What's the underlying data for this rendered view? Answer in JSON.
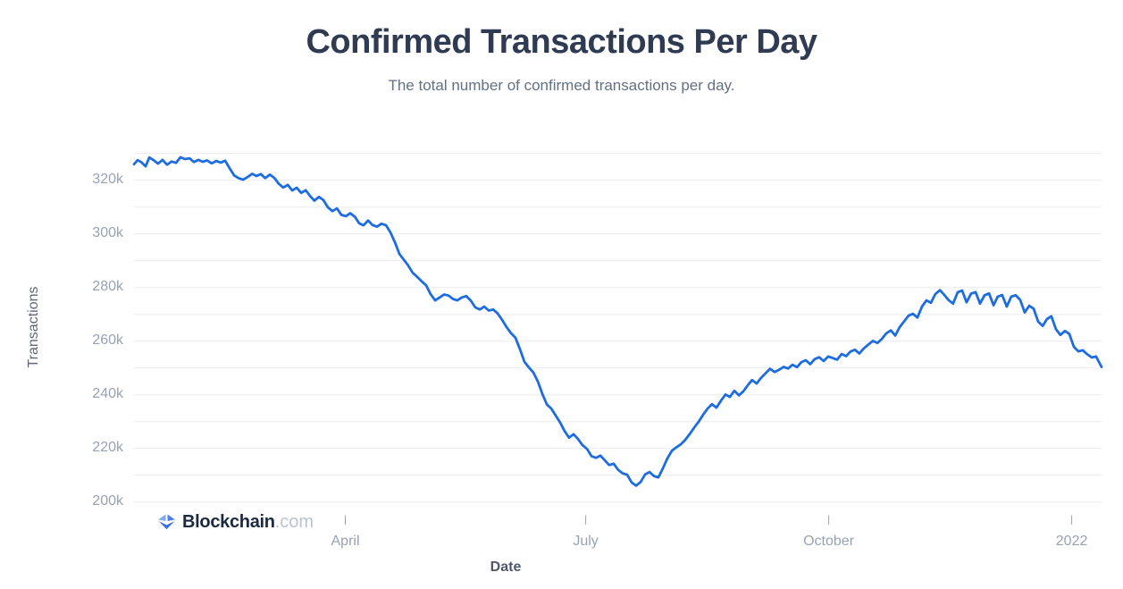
{
  "header": {
    "title": "Confirmed Transactions Per Day",
    "subtitle": "The total number of confirmed transactions per day."
  },
  "branding": {
    "logo_text": "Blockchain",
    "logo_suffix": ".com",
    "logo_icon": "blockchain-diamond-icon",
    "logo_colors": {
      "facet_light": "#82a7f5",
      "facet_mid": "#4a7eec",
      "facet_dark": "#3a70e3",
      "text": "#1d2940",
      "suffix": "#bcc3cf"
    }
  },
  "colors": {
    "line": "#1d6ce0",
    "grid": "#e9ecf1",
    "tick_mark": "#9aa3b2",
    "title": "#2f3b52",
    "subtitle": "#647083",
    "tick_label": "#98a2b3",
    "axis_title": "#5d6779"
  },
  "chart_data": {
    "type": "line",
    "title": "Confirmed Transactions Per Day",
    "subtitle": "The total number of confirmed transactions per day.",
    "xlabel": "Date",
    "ylabel": "Transactions",
    "grid": "horizontal gridlines every 10k, no vertical gridlines",
    "legend": "none",
    "x_range_days": 366.3,
    "x_start_date": "2021-01-10",
    "x_end_date": "2022-01-11",
    "ylim": [
      200000,
      330000
    ],
    "y_ticks": [
      {
        "value": 320,
        "label": "320k"
      },
      {
        "value": 300,
        "label": "300k"
      },
      {
        "value": 280,
        "label": "280k"
      },
      {
        "value": 260,
        "label": "260k"
      },
      {
        "value": 240,
        "label": "240k"
      },
      {
        "value": 220,
        "label": "220k"
      },
      {
        "value": 200,
        "label": "200k"
      }
    ],
    "x_ticks": [
      {
        "day": 80,
        "label": "April"
      },
      {
        "day": 171,
        "label": "July"
      },
      {
        "day": 263,
        "label": "October"
      },
      {
        "day": 355,
        "label": "2022"
      }
    ],
    "series": [
      {
        "name": "Confirmed transactions per day",
        "unit": "thousands of transactions",
        "points": [
          [
            0,
            326
          ],
          [
            1.4,
            327.5
          ],
          [
            2.7,
            326.8
          ],
          [
            4.4,
            325.2
          ],
          [
            5.8,
            328.5
          ],
          [
            7.4,
            327.5
          ],
          [
            9.1,
            326.2
          ],
          [
            10.8,
            327.6
          ],
          [
            12.5,
            325.8
          ],
          [
            14.2,
            327
          ],
          [
            15.9,
            326.5
          ],
          [
            17.6,
            328.6
          ],
          [
            19.3,
            327.9
          ],
          [
            21,
            328.2
          ],
          [
            22.7,
            326.8
          ],
          [
            24.4,
            327.6
          ],
          [
            26,
            326.9
          ],
          [
            27.7,
            327.4
          ],
          [
            29.4,
            326.3
          ],
          [
            31.1,
            327.2
          ],
          [
            32.8,
            326.6
          ],
          [
            34.5,
            327.3
          ],
          [
            36.2,
            324.5
          ],
          [
            37.9,
            321.8
          ],
          [
            39.6,
            320.8
          ],
          [
            41.3,
            320.2
          ],
          [
            43,
            321.2
          ],
          [
            44.7,
            322.4
          ],
          [
            46.3,
            321.6
          ],
          [
            48,
            322.3
          ],
          [
            49.7,
            320.8
          ],
          [
            51.4,
            322.1
          ],
          [
            53.1,
            320.9
          ],
          [
            54.8,
            318.7
          ],
          [
            56.5,
            317.3
          ],
          [
            58.2,
            318.3
          ],
          [
            59.9,
            316.2
          ],
          [
            61.6,
            317.2
          ],
          [
            63.3,
            315.3
          ],
          [
            65,
            316.3
          ],
          [
            66.6,
            314.2
          ],
          [
            68.3,
            312.4
          ],
          [
            70,
            313.8
          ],
          [
            71.7,
            312.6
          ],
          [
            73.4,
            309.9
          ],
          [
            75.1,
            308.5
          ],
          [
            76.8,
            309.5
          ],
          [
            78.5,
            307.1
          ],
          [
            80.2,
            306.6
          ],
          [
            81.9,
            307.7
          ],
          [
            83.6,
            306.4
          ],
          [
            85.2,
            304
          ],
          [
            86.9,
            303.2
          ],
          [
            88.6,
            305
          ],
          [
            90.3,
            303.3
          ],
          [
            92,
            302.7
          ],
          [
            93.7,
            303.8
          ],
          [
            95.4,
            303.2
          ],
          [
            97.1,
            300.5
          ],
          [
            98.8,
            296.8
          ],
          [
            100.5,
            292.5
          ],
          [
            102.2,
            290.3
          ],
          [
            103.8,
            288.2
          ],
          [
            105.5,
            285.5
          ],
          [
            107.2,
            284
          ],
          [
            108.9,
            282.3
          ],
          [
            110.6,
            280.8
          ],
          [
            112.3,
            277.5
          ],
          [
            114,
            275.2
          ],
          [
            115.7,
            276.3
          ],
          [
            117.4,
            277.4
          ],
          [
            119.1,
            277
          ],
          [
            120.8,
            275.7
          ],
          [
            122.4,
            275.2
          ],
          [
            124.1,
            276.3
          ],
          [
            125.8,
            276.8
          ],
          [
            127.5,
            275.1
          ],
          [
            129.2,
            272.6
          ],
          [
            130.9,
            271.8
          ],
          [
            132.6,
            272.9
          ],
          [
            134.3,
            271.4
          ],
          [
            136,
            271.8
          ],
          [
            137.7,
            270.3
          ],
          [
            139.4,
            267.9
          ],
          [
            141,
            265.3
          ],
          [
            142.7,
            263
          ],
          [
            144.4,
            261.3
          ],
          [
            146.1,
            257
          ],
          [
            147.8,
            252.3
          ],
          [
            149.5,
            250.2
          ],
          [
            151.2,
            248.3
          ],
          [
            152.9,
            244.9
          ],
          [
            154.6,
            240.3
          ],
          [
            156.3,
            236.4
          ],
          [
            158,
            234.8
          ],
          [
            159.6,
            232.3
          ],
          [
            161.3,
            229.7
          ],
          [
            163,
            226.5
          ],
          [
            164.7,
            224
          ],
          [
            166.4,
            225.3
          ],
          [
            168.1,
            223.5
          ],
          [
            169.8,
            221.2
          ],
          [
            171.5,
            219.8
          ],
          [
            173.2,
            217.1
          ],
          [
            174.9,
            216.5
          ],
          [
            176.6,
            217.3
          ],
          [
            178.2,
            215.6
          ],
          [
            179.9,
            213.8
          ],
          [
            181.6,
            214.3
          ],
          [
            183.3,
            212
          ],
          [
            185,
            210.7
          ],
          [
            186.7,
            210.2
          ],
          [
            188.4,
            207.3
          ],
          [
            190.1,
            206.1
          ],
          [
            191.8,
            207.5
          ],
          [
            193.5,
            210.3
          ],
          [
            195.2,
            211.2
          ],
          [
            196.8,
            209.7
          ],
          [
            198.5,
            209.2
          ],
          [
            200.2,
            212.5
          ],
          [
            201.9,
            216.2
          ],
          [
            203.6,
            219.1
          ],
          [
            205.3,
            220.4
          ],
          [
            207,
            221.5
          ],
          [
            208.7,
            223.2
          ],
          [
            210.4,
            225.4
          ],
          [
            212.1,
            227.8
          ],
          [
            213.8,
            230
          ],
          [
            215.4,
            232.5
          ],
          [
            217.1,
            234.8
          ],
          [
            218.8,
            236.5
          ],
          [
            220.5,
            235.2
          ],
          [
            222.2,
            237.8
          ],
          [
            223.9,
            240.1
          ],
          [
            225.6,
            239.2
          ],
          [
            227.3,
            241.5
          ],
          [
            229,
            239.8
          ],
          [
            230.7,
            241.3
          ],
          [
            232.4,
            243.6
          ],
          [
            234,
            245.5
          ],
          [
            235.7,
            244.2
          ],
          [
            237.4,
            246.3
          ],
          [
            239.1,
            248
          ],
          [
            240.8,
            249.7
          ],
          [
            242.5,
            248.5
          ],
          [
            244.2,
            249.3
          ],
          [
            245.9,
            250.4
          ],
          [
            247.6,
            249.8
          ],
          [
            249.3,
            251.2
          ],
          [
            251,
            250.3
          ],
          [
            252.6,
            252.1
          ],
          [
            254.3,
            252.9
          ],
          [
            256,
            251.4
          ],
          [
            257.7,
            253.3
          ],
          [
            259.4,
            254
          ],
          [
            261.1,
            252.6
          ],
          [
            262.8,
            254.3
          ],
          [
            264.5,
            253.7
          ],
          [
            266.2,
            253.1
          ],
          [
            267.9,
            255.2
          ],
          [
            269.6,
            254.4
          ],
          [
            271.2,
            256.1
          ],
          [
            272.9,
            256.8
          ],
          [
            274.6,
            255.4
          ],
          [
            276.3,
            257.3
          ],
          [
            278,
            258.7
          ],
          [
            279.7,
            260.1
          ],
          [
            281.4,
            259.3
          ],
          [
            283.1,
            260.8
          ],
          [
            284.8,
            262.9
          ],
          [
            286.5,
            264
          ],
          [
            288.2,
            262.1
          ],
          [
            289.8,
            265.1
          ],
          [
            291.5,
            267.3
          ],
          [
            293.2,
            269.5
          ],
          [
            294.9,
            270.2
          ],
          [
            296.6,
            268.8
          ],
          [
            298.3,
            272.9
          ],
          [
            300,
            275.2
          ],
          [
            301.7,
            274.3
          ],
          [
            303.4,
            277.6
          ],
          [
            305.1,
            279
          ],
          [
            306.8,
            277.2
          ],
          [
            308.4,
            275.3
          ],
          [
            310.1,
            274
          ],
          [
            311.8,
            278.2
          ],
          [
            313.5,
            278.9
          ],
          [
            315.2,
            274.5
          ],
          [
            316.9,
            277.7
          ],
          [
            318.6,
            278.3
          ],
          [
            320.3,
            274
          ],
          [
            322,
            277.1
          ],
          [
            323.7,
            277.8
          ],
          [
            325.4,
            273.4
          ],
          [
            327,
            276.6
          ],
          [
            328.7,
            277.2
          ],
          [
            330.4,
            272.9
          ],
          [
            332.1,
            276.6
          ],
          [
            333.8,
            277.1
          ],
          [
            335.5,
            275.4
          ],
          [
            337.2,
            270.7
          ],
          [
            338.9,
            273.2
          ],
          [
            340.6,
            272.1
          ],
          [
            342.3,
            267.3
          ],
          [
            344,
            265.7
          ],
          [
            345.6,
            268.2
          ],
          [
            347.3,
            269.3
          ],
          [
            349,
            264.5
          ],
          [
            350.7,
            262.3
          ],
          [
            352.4,
            263.8
          ],
          [
            354.1,
            262.7
          ],
          [
            355.8,
            257.9
          ],
          [
            357.5,
            256.2
          ],
          [
            359.2,
            256.6
          ],
          [
            360.9,
            255.1
          ],
          [
            362.6,
            253.9
          ],
          [
            364.2,
            254.3
          ],
          [
            366.3,
            250.4
          ]
        ]
      }
    ]
  }
}
